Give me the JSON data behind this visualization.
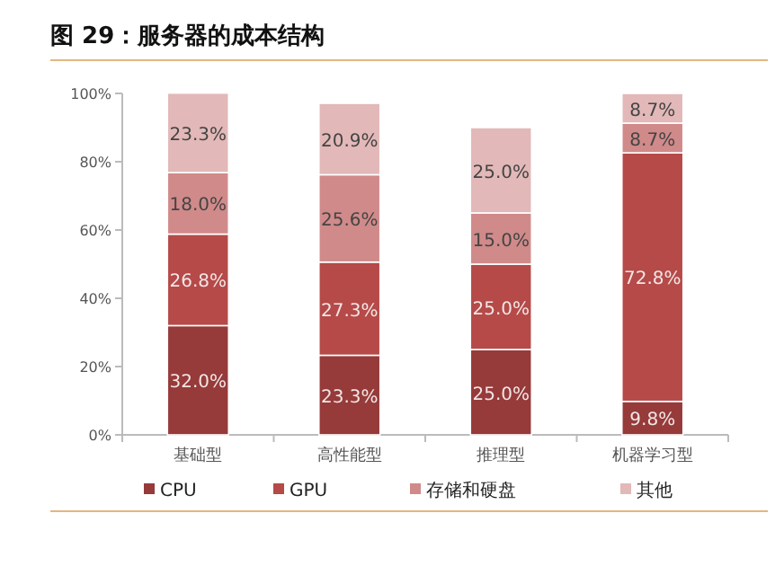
{
  "chart_data": {
    "type": "bar",
    "stacked": true,
    "title": "图 29：服务器的成本结构",
    "categories": [
      "基础型",
      "高性能型",
      "推理型",
      "机器学习型"
    ],
    "series": [
      {
        "name": "CPU",
        "color": "#963a3a",
        "values": [
          32.0,
          23.3,
          25.0,
          9.8
        ]
      },
      {
        "name": "GPU",
        "color": "#b54a48",
        "values": [
          26.8,
          27.3,
          25.0,
          72.8
        ]
      },
      {
        "name": "存储和硬盘",
        "color": "#d08a8a",
        "values": [
          18.0,
          25.6,
          15.0,
          8.7
        ]
      },
      {
        "name": "其他",
        "color": "#e2b8b8",
        "values": [
          23.3,
          20.9,
          25.0,
          8.7
        ]
      }
    ],
    "ylim": [
      0,
      100
    ],
    "yticks": [
      {
        "value": 0,
        "label": "0%"
      },
      {
        "value": 20,
        "label": "20%"
      },
      {
        "value": 40,
        "label": "40%"
      },
      {
        "value": 60,
        "label": "60%"
      },
      {
        "value": 80,
        "label": "80%"
      },
      {
        "value": 100,
        "label": "100%"
      }
    ],
    "value_labels": [
      [
        "32.0%",
        "23.3%",
        "25.0%",
        "9.8%"
      ],
      [
        "26.8%",
        "27.3%",
        "25.0%",
        "72.8%"
      ],
      [
        "18.0%",
        "25.6%",
        "15.0%",
        "8.7%"
      ],
      [
        "23.3%",
        "20.9%",
        "25.0%",
        "8.7%"
      ]
    ],
    "legend": "bottom",
    "grid": false
  }
}
